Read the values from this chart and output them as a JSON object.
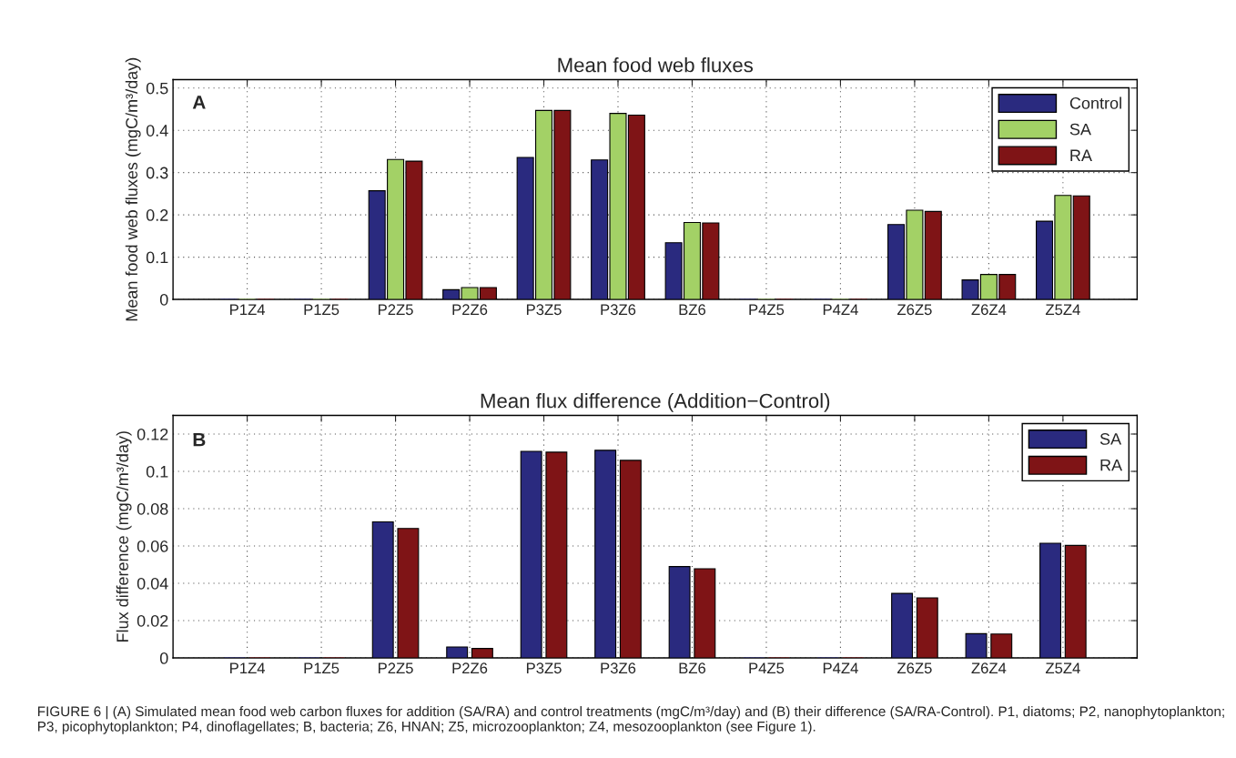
{
  "chart_data": [
    {
      "type": "bar",
      "title": "Mean food web fluxes",
      "ylabel": "Mean food web fluxes (mgC/m³/day)",
      "categories": [
        "P1Z4",
        "P1Z5",
        "P2Z5",
        "P2Z6",
        "P3Z5",
        "P3Z6",
        "BZ6",
        "P4Z5",
        "P4Z4",
        "Z6Z5",
        "Z6Z4",
        "Z5Z4"
      ],
      "series": [
        {
          "name": "Control",
          "color": "#2a2a7f",
          "values": [
            0,
            0,
            0.257,
            0.023,
            0.336,
            0.33,
            0.134,
            0,
            0,
            0.177,
            0.046,
            0.185
          ]
        },
        {
          "name": "SA",
          "color": "#a3d166",
          "values": [
            0,
            0,
            0.331,
            0.028,
            0.447,
            0.44,
            0.182,
            0,
            0,
            0.211,
            0.059,
            0.246
          ]
        },
        {
          "name": "RA",
          "color": "#7f1416",
          "values": [
            0,
            0,
            0.327,
            0.028,
            0.447,
            0.436,
            0.181,
            0,
            0,
            0.208,
            0.059,
            0.245
          ]
        }
      ],
      "ylim": [
        0,
        0.52
      ],
      "yticks": [
        0,
        0.1,
        0.2,
        0.3,
        0.4,
        0.5
      ],
      "grid": true,
      "legend": "top right",
      "annotations": [
        "A"
      ]
    },
    {
      "type": "bar",
      "title": "Mean flux difference (Addition−Control)",
      "ylabel": "Flux difference (mgC/m³/day)",
      "categories": [
        "P1Z4",
        "P1Z5",
        "P2Z5",
        "P2Z6",
        "P3Z5",
        "P3Z6",
        "BZ6",
        "P4Z5",
        "P4Z4",
        "Z6Z5",
        "Z6Z4",
        "Z5Z4"
      ],
      "series": [
        {
          "name": "SA",
          "color": "#2a2a7f",
          "values": [
            0,
            0,
            0.0729,
            0.0059,
            0.1107,
            0.1113,
            0.049,
            0,
            0,
            0.0346,
            0.013,
            0.0615
          ]
        },
        {
          "name": "RA",
          "color": "#7f1416",
          "values": [
            0,
            0,
            0.0694,
            0.0051,
            0.1103,
            0.1059,
            0.0478,
            0,
            0,
            0.0322,
            0.0128,
            0.0603
          ]
        }
      ],
      "ylim": [
        0,
        0.13
      ],
      "yticks": [
        0,
        0.02,
        0.04,
        0.06,
        0.08,
        0.1,
        0.12
      ],
      "grid": true,
      "legend": "top right",
      "annotations": [
        "B",
        "FIGURE 6 | (A) Simulated mean food web carbon fluxes for addition (SA/RA) and control treatments (mgC/m³/day) and (B) their difference (SA/RA-Control). P1, diatoms; P2, nanophytoplankton; P3, picophytoplankton; P4, dinoflagellates; B, bacteria; Z6, HNAN; Z5, microzooplankton; Z4, mesozooplankton (see Figure 1)."
      ]
    }
  ]
}
